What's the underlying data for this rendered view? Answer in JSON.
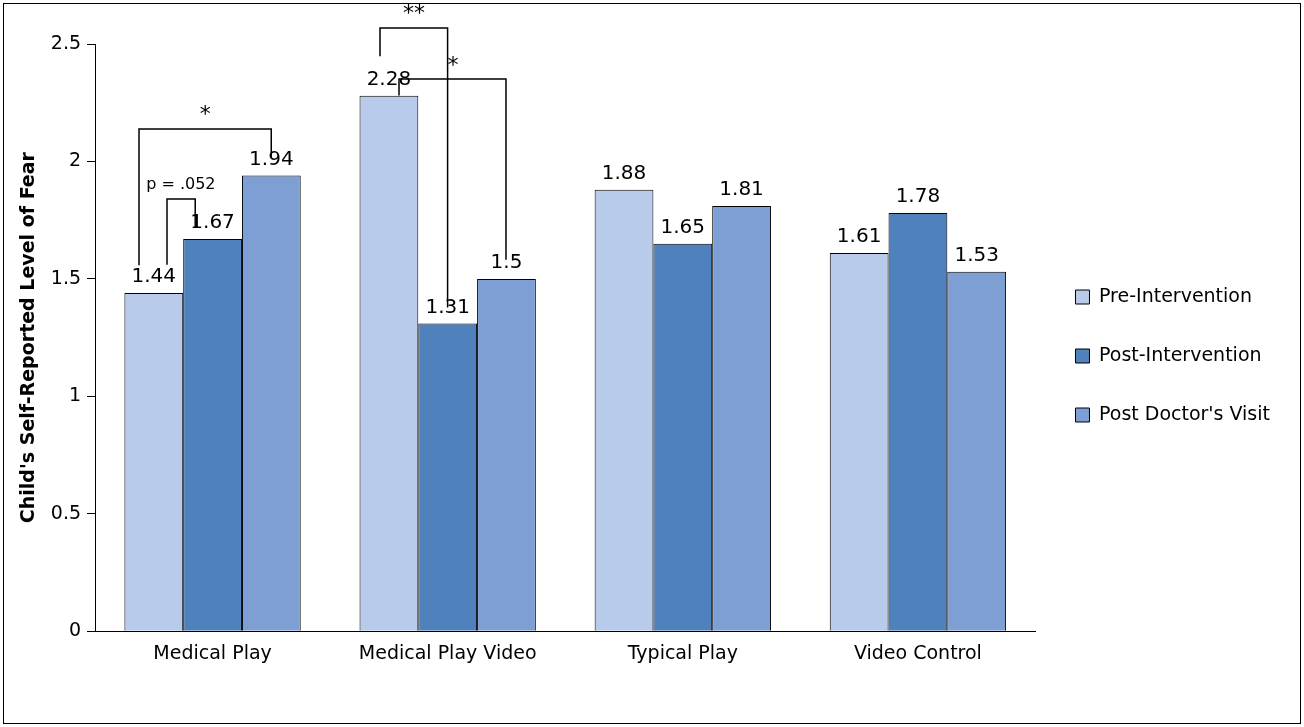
{
  "chart_data": {
    "type": "bar",
    "ylabel": "Child's Self-Reported Level of Fear",
    "categories": [
      "Medical Play",
      "Medical Play Video",
      "Typical Play",
      "Video Control"
    ],
    "series": [
      {
        "name": "Pre-Intervention",
        "color": "#b8cbea",
        "values": [
          1.44,
          2.28,
          1.88,
          1.61
        ]
      },
      {
        "name": "Post-Intervention",
        "color": "#4f81bd",
        "values": [
          1.67,
          1.31,
          1.65,
          1.78
        ]
      },
      {
        "name": "Post Doctor's Visit",
        "color": "#7d9fd3",
        "values": [
          1.94,
          1.5,
          1.81,
          1.53
        ]
      }
    ],
    "ylim": [
      0,
      2.5
    ],
    "yticks": [
      0,
      0.5,
      1,
      1.5,
      2,
      2.5
    ],
    "grid": false,
    "legend": "right",
    "data_labels": true,
    "annotations": [
      "p = .052",
      "*",
      "**",
      "*"
    ]
  }
}
